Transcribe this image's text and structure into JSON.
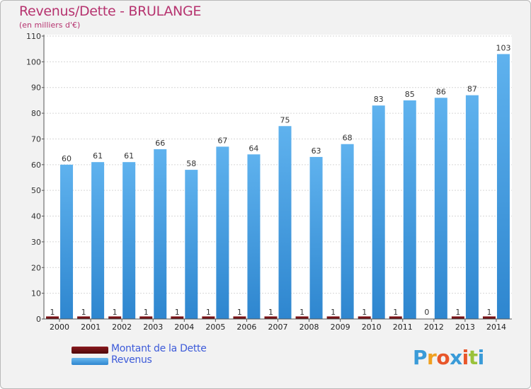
{
  "title": "Revenus/Dette - BRULANGE",
  "subtitle": "(en milliers d'€)",
  "colors": {
    "title": "#b6336f",
    "dette": "#6b0e12",
    "revenus": "#4aa3e4",
    "legend_text": "#3d5bd9"
  },
  "legend": {
    "dette": "Montant de la Dette",
    "revenus": "Revenus"
  },
  "logo": {
    "text": "Proxiti"
  },
  "chart_data": {
    "type": "bar",
    "categories": [
      "2000",
      "2001",
      "2002",
      "2003",
      "2004",
      "2005",
      "2006",
      "2007",
      "2008",
      "2009",
      "2010",
      "2011",
      "2012",
      "2013",
      "2014"
    ],
    "series": [
      {
        "name": "Montant de la Dette",
        "values": [
          1,
          1,
          1,
          1,
          1,
          1,
          1,
          1,
          1,
          1,
          1,
          1,
          0,
          1,
          1
        ]
      },
      {
        "name": "Revenus",
        "values": [
          60,
          61,
          61,
          66,
          58,
          67,
          64,
          75,
          63,
          68,
          83,
          85,
          86,
          87,
          103
        ]
      }
    ],
    "yticks": [
      0,
      10,
      20,
      30,
      40,
      50,
      60,
      70,
      80,
      90,
      100,
      110
    ],
    "ylim": [
      0,
      110
    ],
    "grid": true
  }
}
